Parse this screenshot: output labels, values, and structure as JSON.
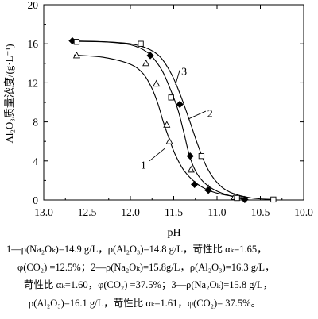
{
  "chart_data": {
    "type": "scatter",
    "xlabel": "pH",
    "ylabel": "Al₂O₃质量浓度/(g·L⁻¹)",
    "xlim": [
      13.0,
      10.0
    ],
    "ylim": [
      0,
      20
    ],
    "x_ticks": [
      "13.0",
      "12.5",
      "12.0",
      "11.5",
      "11.0",
      "10.5",
      "10.0"
    ],
    "y_ticks": [
      "0",
      "4",
      "8",
      "12",
      "16",
      "20"
    ],
    "grid": false,
    "legend": "none",
    "series": [
      {
        "name": "1",
        "marker": "triangle-open",
        "points": [
          [
            12.62,
            14.8
          ],
          [
            11.82,
            14.0
          ],
          [
            11.7,
            11.9
          ],
          [
            11.58,
            7.7
          ],
          [
            11.55,
            6.0
          ],
          [
            11.3,
            3.1
          ],
          [
            11.1,
            1.2
          ],
          [
            10.8,
            0.3
          ]
        ],
        "curve": [
          [
            12.65,
            14.85
          ],
          [
            12.3,
            14.6
          ],
          [
            12.0,
            13.9
          ],
          [
            11.85,
            12.9
          ],
          [
            11.75,
            11.4
          ],
          [
            11.68,
            9.8
          ],
          [
            11.62,
            8.0
          ],
          [
            11.55,
            6.2
          ],
          [
            11.48,
            4.6
          ],
          [
            11.38,
            3.0
          ],
          [
            11.25,
            1.8
          ],
          [
            11.1,
            1.0
          ],
          [
            10.9,
            0.5
          ],
          [
            10.7,
            0.3
          ]
        ]
      },
      {
        "name": "2",
        "marker": "diamond-filled",
        "points": [
          [
            12.67,
            16.3
          ],
          [
            11.77,
            14.8
          ],
          [
            11.43,
            9.8
          ],
          [
            11.31,
            4.5
          ],
          [
            11.26,
            1.6
          ],
          [
            11.1,
            1.0
          ],
          [
            10.68,
            0.05
          ]
        ],
        "curve": [
          [
            12.7,
            16.3
          ],
          [
            12.3,
            16.2
          ],
          [
            12.0,
            15.9
          ],
          [
            11.8,
            15.1
          ],
          [
            11.65,
            13.5
          ],
          [
            11.55,
            11.6
          ],
          [
            11.45,
            9.2
          ],
          [
            11.38,
            6.8
          ],
          [
            11.32,
            4.6
          ],
          [
            11.25,
            3.0
          ],
          [
            11.15,
            1.8
          ],
          [
            11.0,
            0.9
          ],
          [
            10.8,
            0.3
          ],
          [
            10.68,
            0.05
          ]
        ]
      },
      {
        "name": "3",
        "marker": "square-open",
        "points": [
          [
            12.62,
            16.2
          ],
          [
            11.88,
            16.0
          ],
          [
            11.53,
            10.5
          ],
          [
            11.18,
            4.5
          ],
          [
            10.77,
            0.2
          ],
          [
            10.35,
            0.05
          ]
        ],
        "curve": [
          [
            12.65,
            16.25
          ],
          [
            12.3,
            16.2
          ],
          [
            12.0,
            16.0
          ],
          [
            11.8,
            15.5
          ],
          [
            11.65,
            14.6
          ],
          [
            11.52,
            12.8
          ],
          [
            11.42,
            10.7
          ],
          [
            11.32,
            8.2
          ],
          [
            11.22,
            5.6
          ],
          [
            11.12,
            3.4
          ],
          [
            11.0,
            1.8
          ],
          [
            10.85,
            0.8
          ],
          [
            10.6,
            0.2
          ],
          [
            10.35,
            0.05
          ]
        ]
      }
    ],
    "curve_labels": [
      {
        "text": "1",
        "x": 11.85,
        "y": 3.6
      },
      {
        "text": "2",
        "x": 11.08,
        "y": 8.9
      },
      {
        "text": "3",
        "x": 11.38,
        "y": 13.2
      }
    ]
  },
  "caption": {
    "lines": [
      "1—ρ(Na₂Oₖ)=14.9 g/L，ρ(Al₂O₃)=14.8 g/L，苛性比 αₖ=1.65，",
      "φ(CO₂) =12.5%；2—ρ(Na₂Oₖ)=15.8g/L，ρ(Al₂O₃)=16.3 g/L，",
      "苛性比 αₖ=1.60，φ(CO₂) =37.5%；3—ρ(Na₂Oₖ)=15.8 g/L，",
      "ρ(Al₂O₃)=16.1 g/L，苛性比 αₖ=1.61，φ(CO₂)= 37.5%。"
    ]
  }
}
